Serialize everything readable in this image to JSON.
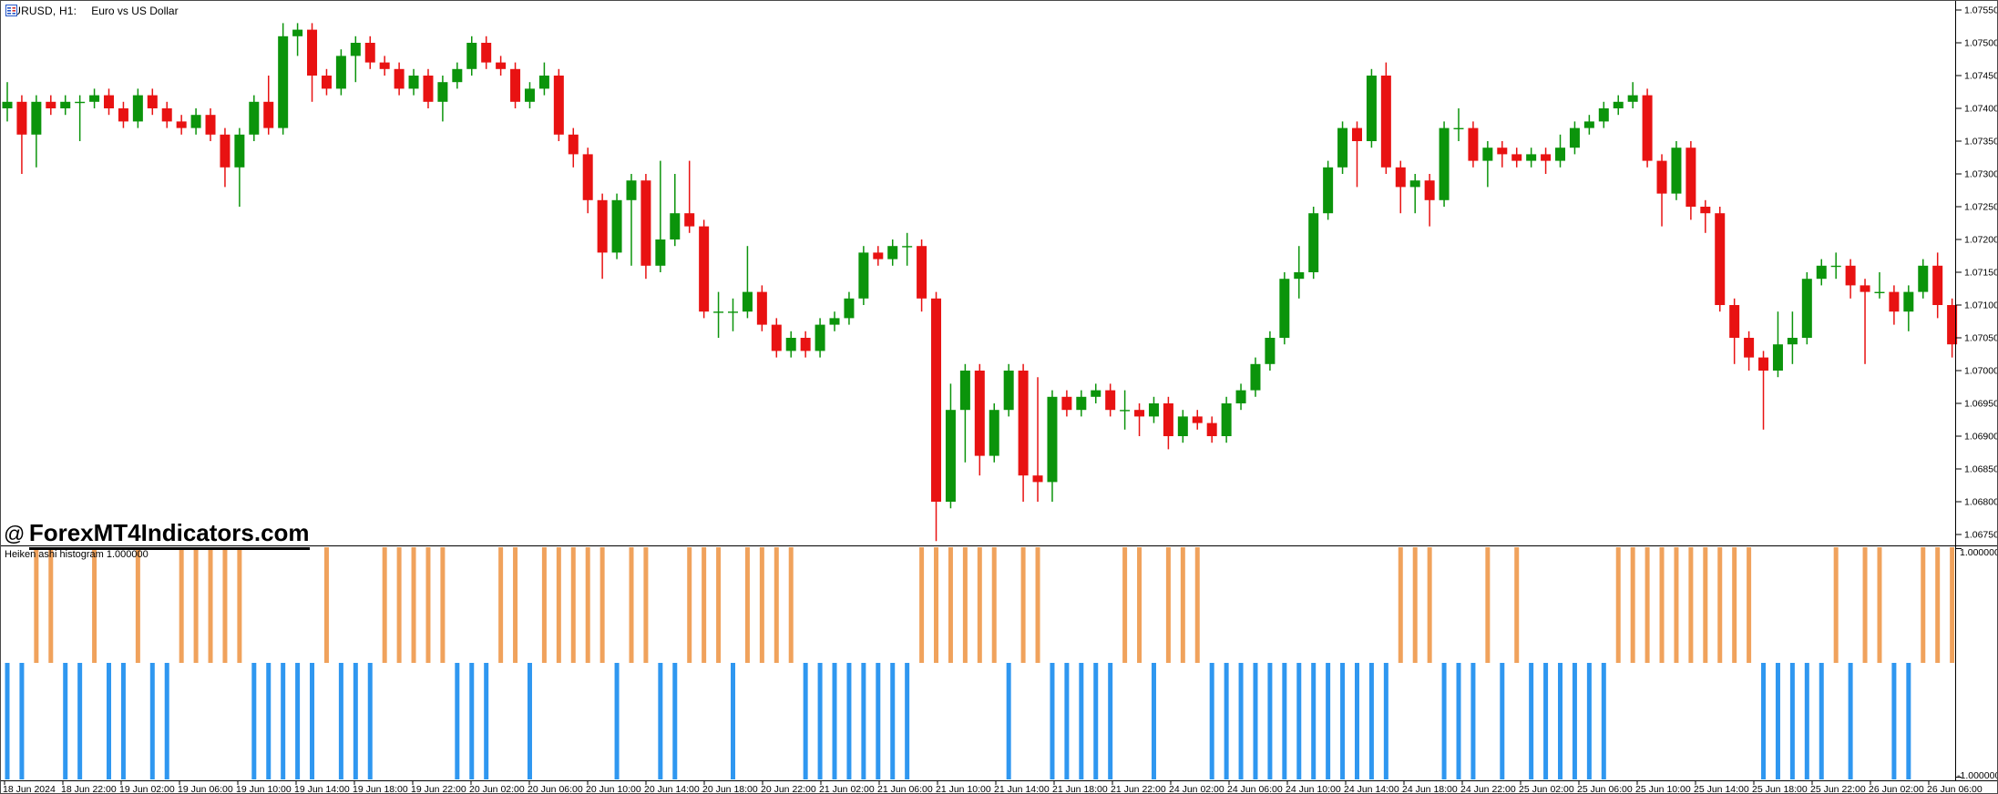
{
  "window_title": {
    "symbol": "EURUSD, H1:",
    "description": "Euro vs US Dollar"
  },
  "watermark": {
    "prefix": "@",
    "text": "ForexMT4Indicators.com"
  },
  "indicator_panel": {
    "label": "Heiken ashi histogram 1.000000",
    "axis_max_label": "1.000000",
    "axis_min_label": "-1.000000"
  },
  "colors": {
    "background": "#ffffff",
    "bull": "#0b940b",
    "bear": "#e81212",
    "hist_up": "#f0a25c",
    "hist_down": "#2f97f0",
    "axis_line": "#000000",
    "label_text": "#000000",
    "icon_blue": "#2456c8",
    "icon_red": "#d03232"
  },
  "chart_data": {
    "type": "candlestick",
    "title": "EURUSD, H1: Euro vs US Dollar",
    "symbol": "EURUSD",
    "timeframe": "H1",
    "grid": false,
    "legend_position": "none",
    "price_axis": {
      "max": 1.0756,
      "min": 1.0672,
      "tick_step": 0.0005,
      "labels": [
        "1.07550",
        "1.07500",
        "1.07450",
        "1.07400",
        "1.07350",
        "1.07300",
        "1.07250",
        "1.07200",
        "1.07150",
        "1.07100",
        "1.07050",
        "1.07000",
        "1.06950",
        "1.06900",
        "1.06850",
        "1.06800",
        "1.06750"
      ]
    },
    "time_labels": [
      "18 Jun 2024",
      "18 Jun 22:00",
      "19 Jun 02:00",
      "19 Jun 06:00",
      "19 Jun 10:00",
      "19 Jun 14:00",
      "19 Jun 18:00",
      "19 Jun 22:00",
      "20 Jun 02:00",
      "20 Jun 06:00",
      "20 Jun 10:00",
      "20 Jun 14:00",
      "20 Jun 18:00",
      "20 Jun 22:00",
      "21 Jun 02:00",
      "21 Jun 06:00",
      "21 Jun 10:00",
      "21 Jun 14:00",
      "21 Jun 18:00",
      "21 Jun 22:00",
      "24 Jun 02:00",
      "24 Jun 06:00",
      "24 Jun 10:00",
      "24 Jun 14:00",
      "24 Jun 18:00",
      "24 Jun 22:00",
      "25 Jun 02:00",
      "25 Jun 06:00",
      "25 Jun 10:00",
      "25 Jun 14:00",
      "25 Jun 18:00",
      "25 Jun 22:00",
      "26 Jun 02:00",
      "26 Jun 06:00"
    ],
    "candles": [
      [
        1.074,
        1.0744,
        1.0738,
        1.0741
      ],
      [
        1.0741,
        1.0742,
        1.073,
        1.0736
      ],
      [
        1.0736,
        1.0742,
        1.0731,
        1.0741
      ],
      [
        1.0741,
        1.0742,
        1.0739,
        1.074
      ],
      [
        1.074,
        1.0742,
        1.0739,
        1.0741
      ],
      [
        1.0741,
        1.0742,
        1.0735,
        1.0741
      ],
      [
        1.0741,
        1.0743,
        1.074,
        1.0742
      ],
      [
        1.0742,
        1.0743,
        1.0739,
        1.074
      ],
      [
        1.074,
        1.0741,
        1.0737,
        1.0738
      ],
      [
        1.0738,
        1.0743,
        1.0737,
        1.0742
      ],
      [
        1.0742,
        1.0743,
        1.0739,
        1.074
      ],
      [
        1.074,
        1.0741,
        1.0737,
        1.0738
      ],
      [
        1.0738,
        1.0739,
        1.0736,
        1.0737
      ],
      [
        1.0737,
        1.074,
        1.0736,
        1.0739
      ],
      [
        1.0739,
        1.074,
        1.0735,
        1.0736
      ],
      [
        1.0736,
        1.0737,
        1.0728,
        1.0731
      ],
      [
        1.0731,
        1.0737,
        1.0725,
        1.0736
      ],
      [
        1.0736,
        1.0742,
        1.0735,
        1.0741
      ],
      [
        1.0741,
        1.0745,
        1.0736,
        1.0737
      ],
      [
        1.0737,
        1.0753,
        1.0736,
        1.0751
      ],
      [
        1.0751,
        1.0753,
        1.0748,
        1.0752
      ],
      [
        1.0752,
        1.0753,
        1.0741,
        1.0745
      ],
      [
        1.0745,
        1.0746,
        1.0742,
        1.0743
      ],
      [
        1.0743,
        1.0749,
        1.0742,
        1.0748
      ],
      [
        1.0748,
        1.0751,
        1.0744,
        1.075
      ],
      [
        1.075,
        1.0751,
        1.0746,
        1.0747
      ],
      [
        1.0747,
        1.0748,
        1.0745,
        1.0746
      ],
      [
        1.0746,
        1.0747,
        1.0742,
        1.0743
      ],
      [
        1.0743,
        1.0746,
        1.0742,
        1.0745
      ],
      [
        1.0745,
        1.0746,
        1.074,
        1.0741
      ],
      [
        1.0741,
        1.0745,
        1.0738,
        1.0744
      ],
      [
        1.0744,
        1.0747,
        1.0743,
        1.0746
      ],
      [
        1.0746,
        1.0751,
        1.0745,
        1.075
      ],
      [
        1.075,
        1.0751,
        1.0746,
        1.0747
      ],
      [
        1.0747,
        1.0748,
        1.0745,
        1.0746
      ],
      [
        1.0746,
        1.0747,
        1.074,
        1.0741
      ],
      [
        1.0741,
        1.0744,
        1.074,
        1.0743
      ],
      [
        1.0743,
        1.0747,
        1.0742,
        1.0745
      ],
      [
        1.0745,
        1.0746,
        1.0735,
        1.0736
      ],
      [
        1.0736,
        1.0737,
        1.0731,
        1.0733
      ],
      [
        1.0733,
        1.0734,
        1.0724,
        1.0726
      ],
      [
        1.0726,
        1.0727,
        1.0714,
        1.0718
      ],
      [
        1.0718,
        1.0727,
        1.0717,
        1.0726
      ],
      [
        1.0726,
        1.073,
        1.0716,
        1.0729
      ],
      [
        1.0729,
        1.073,
        1.0714,
        1.0716
      ],
      [
        1.0716,
        1.0732,
        1.0715,
        1.072
      ],
      [
        1.072,
        1.073,
        1.0719,
        1.0724
      ],
      [
        1.0724,
        1.0732,
        1.0721,
        1.0722
      ],
      [
        1.0722,
        1.0723,
        1.0708,
        1.0709
      ],
      [
        1.0709,
        1.0712,
        1.0705,
        1.0709
      ],
      [
        1.0709,
        1.0711,
        1.0706,
        1.0709
      ],
      [
        1.0709,
        1.0719,
        1.0708,
        1.0712
      ],
      [
        1.0712,
        1.0713,
        1.0706,
        1.0707
      ],
      [
        1.0707,
        1.0708,
        1.0702,
        1.0703
      ],
      [
        1.0703,
        1.0706,
        1.0702,
        1.0705
      ],
      [
        1.0705,
        1.0706,
        1.0702,
        1.0703
      ],
      [
        1.0703,
        1.0708,
        1.0702,
        1.0707
      ],
      [
        1.0707,
        1.0709,
        1.0706,
        1.0708
      ],
      [
        1.0708,
        1.0712,
        1.0707,
        1.0711
      ],
      [
        1.0711,
        1.0719,
        1.071,
        1.0718
      ],
      [
        1.0718,
        1.0719,
        1.0716,
        1.0717
      ],
      [
        1.0717,
        1.072,
        1.0716,
        1.0719
      ],
      [
        1.0719,
        1.0721,
        1.0716,
        1.0719
      ],
      [
        1.0719,
        1.072,
        1.0709,
        1.0711
      ],
      [
        1.0711,
        1.0712,
        1.0674,
        1.068
      ],
      [
        1.068,
        1.0698,
        1.0679,
        1.0694
      ],
      [
        1.0694,
        1.0701,
        1.0686,
        1.07
      ],
      [
        1.07,
        1.0701,
        1.0684,
        1.0687
      ],
      [
        1.0687,
        1.0695,
        1.0686,
        1.0694
      ],
      [
        1.0694,
        1.0701,
        1.0693,
        1.07
      ],
      [
        1.07,
        1.0701,
        1.068,
        1.0684
      ],
      [
        1.0684,
        1.0699,
        1.068,
        1.0683
      ],
      [
        1.0683,
        1.0697,
        1.068,
        1.0696
      ],
      [
        1.0696,
        1.0697,
        1.0693,
        1.0694
      ],
      [
        1.0694,
        1.0697,
        1.0693,
        1.0696
      ],
      [
        1.0696,
        1.0698,
        1.0695,
        1.0697
      ],
      [
        1.0697,
        1.0698,
        1.0693,
        1.0694
      ],
      [
        1.0694,
        1.0697,
        1.0691,
        1.0694
      ],
      [
        1.0694,
        1.0695,
        1.069,
        1.0693
      ],
      [
        1.0693,
        1.0696,
        1.0692,
        1.0695
      ],
      [
        1.0695,
        1.0696,
        1.0688,
        1.069
      ],
      [
        1.069,
        1.0694,
        1.0689,
        1.0693
      ],
      [
        1.0693,
        1.0694,
        1.0691,
        1.0692
      ],
      [
        1.0692,
        1.0693,
        1.0689,
        1.069
      ],
      [
        1.069,
        1.0696,
        1.0689,
        1.0695
      ],
      [
        1.0695,
        1.0698,
        1.0694,
        1.0697
      ],
      [
        1.0697,
        1.0702,
        1.0696,
        1.0701
      ],
      [
        1.0701,
        1.0706,
        1.07,
        1.0705
      ],
      [
        1.0705,
        1.0715,
        1.0704,
        1.0714
      ],
      [
        1.0714,
        1.0719,
        1.0711,
        1.0715
      ],
      [
        1.0715,
        1.0725,
        1.0714,
        1.0724
      ],
      [
        1.0724,
        1.0732,
        1.0723,
        1.0731
      ],
      [
        1.0731,
        1.0738,
        1.073,
        1.0737
      ],
      [
        1.0737,
        1.0738,
        1.0728,
        1.0735
      ],
      [
        1.0735,
        1.0746,
        1.0734,
        1.0745
      ],
      [
        1.0745,
        1.0747,
        1.073,
        1.0731
      ],
      [
        1.0731,
        1.0732,
        1.0724,
        1.0728
      ],
      [
        1.0728,
        1.073,
        1.0724,
        1.0729
      ],
      [
        1.0729,
        1.073,
        1.0722,
        1.0726
      ],
      [
        1.0726,
        1.0738,
        1.0725,
        1.0737
      ],
      [
        1.0737,
        1.074,
        1.0735,
        1.0737
      ],
      [
        1.0737,
        1.0738,
        1.0731,
        1.0732
      ],
      [
        1.0732,
        1.0735,
        1.0728,
        1.0734
      ],
      [
        1.0734,
        1.0735,
        1.0731,
        1.0733
      ],
      [
        1.0733,
        1.0734,
        1.0731,
        1.0732
      ],
      [
        1.0732,
        1.0734,
        1.0731,
        1.0733
      ],
      [
        1.0733,
        1.0734,
        1.073,
        1.0732
      ],
      [
        1.0732,
        1.0736,
        1.0731,
        1.0734
      ],
      [
        1.0734,
        1.0738,
        1.0733,
        1.0737
      ],
      [
        1.0737,
        1.0739,
        1.0736,
        1.0738
      ],
      [
        1.0738,
        1.0741,
        1.0737,
        1.074
      ],
      [
        1.074,
        1.0742,
        1.0739,
        1.0741
      ],
      [
        1.0741,
        1.0744,
        1.074,
        1.0742
      ],
      [
        1.0742,
        1.0743,
        1.0731,
        1.0732
      ],
      [
        1.0732,
        1.0733,
        1.0722,
        1.0727
      ],
      [
        1.0727,
        1.0735,
        1.0726,
        1.0734
      ],
      [
        1.0734,
        1.0735,
        1.0723,
        1.0725
      ],
      [
        1.0725,
        1.0726,
        1.0721,
        1.0724
      ],
      [
        1.0724,
        1.0725,
        1.0709,
        1.071
      ],
      [
        1.071,
        1.0711,
        1.0701,
        1.0705
      ],
      [
        1.0705,
        1.0706,
        1.07,
        1.0702
      ],
      [
        1.0702,
        1.0703,
        1.0691,
        1.07
      ],
      [
        1.07,
        1.0709,
        1.0699,
        1.0704
      ],
      [
        1.0704,
        1.0709,
        1.0701,
        1.0705
      ],
      [
        1.0705,
        1.0715,
        1.0704,
        1.0714
      ],
      [
        1.0714,
        1.0717,
        1.0713,
        1.0716
      ],
      [
        1.0716,
        1.0718,
        1.0714,
        1.0716
      ],
      [
        1.0716,
        1.0717,
        1.0711,
        1.0713
      ],
      [
        1.0713,
        1.0714,
        1.0701,
        1.0712
      ],
      [
        1.0712,
        1.0715,
        1.0711,
        1.0712
      ],
      [
        1.0712,
        1.0713,
        1.0707,
        1.0709
      ],
      [
        1.0709,
        1.0713,
        1.0706,
        1.0712
      ],
      [
        1.0712,
        1.0717,
        1.0711,
        1.0716
      ],
      [
        1.0716,
        1.0718,
        1.0708,
        1.071
      ],
      [
        1.071,
        1.0711,
        1.0702,
        1.0704
      ]
    ],
    "sub_chart": {
      "type": "histogram",
      "name": "Heiken ashi histogram",
      "current_value": "1.000000",
      "ylim": [
        -1,
        1
      ],
      "up_value": 1,
      "down_value": -1,
      "values": [
        -1,
        -1,
        1,
        1,
        -1,
        -1,
        1,
        -1,
        -1,
        1,
        -1,
        -1,
        1,
        1,
        1,
        1,
        1,
        -1,
        -1,
        -1,
        -1,
        -1,
        1,
        -1,
        -1,
        -1,
        1,
        1,
        1,
        1,
        1,
        -1,
        -1,
        -1,
        1,
        1,
        -1,
        1,
        1,
        1,
        1,
        1,
        -1,
        1,
        1,
        -1,
        -1,
        1,
        1,
        1,
        -1,
        1,
        1,
        1,
        1,
        -1,
        -1,
        -1,
        -1,
        -1,
        -1,
        -1,
        -1,
        1,
        1,
        1,
        1,
        1,
        1,
        -1,
        1,
        1,
        -1,
        -1,
        -1,
        -1,
        -1,
        1,
        1,
        -1,
        1,
        1,
        1,
        -1,
        -1,
        -1,
        -1,
        -1,
        -1,
        -1,
        -1,
        -1,
        -1,
        -1,
        -1,
        -1,
        1,
        1,
        1,
        -1,
        -1,
        -1,
        1,
        -1,
        1,
        -1,
        -1,
        -1,
        -1,
        -1,
        -1,
        1,
        1,
        1,
        1,
        1,
        1,
        1,
        1,
        1,
        1,
        -1,
        -1,
        -1,
        -1,
        -1,
        1,
        -1,
        1,
        1,
        -1,
        -1,
        1,
        1,
        1
      ]
    }
  }
}
